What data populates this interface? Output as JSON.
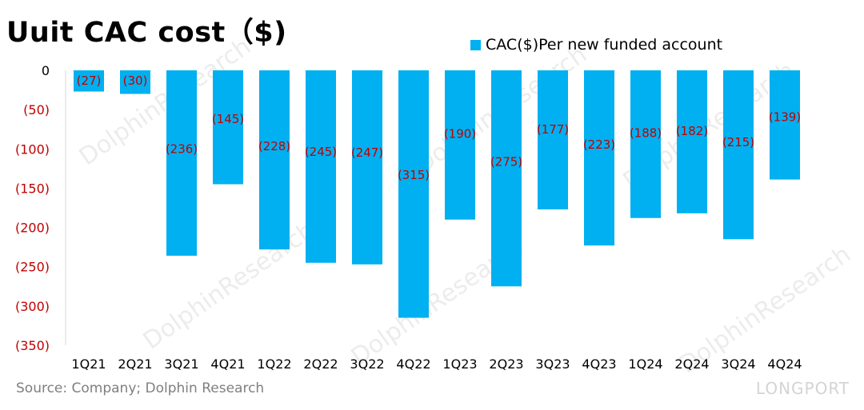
{
  "chart_data": {
    "type": "bar",
    "title": "Uuit CAC cost（$)",
    "legend": "CAC($)Per new funded account",
    "legend_position": "top-right",
    "categories": [
      "1Q21",
      "2Q21",
      "3Q21",
      "4Q21",
      "1Q22",
      "2Q22",
      "3Q22",
      "4Q22",
      "1Q23",
      "2Q23",
      "3Q23",
      "4Q23",
      "1Q24",
      "2Q24",
      "3Q24",
      "4Q24"
    ],
    "series": [
      {
        "name": "CAC($)Per new funded account",
        "values": [
          -27,
          -30,
          -236,
          -145,
          -228,
          -245,
          -247,
          -315,
          -190,
          -275,
          -177,
          -223,
          -188,
          -182,
          -215,
          -139
        ],
        "labels": [
          "(27)",
          "(30)",
          "(236)",
          "(145)",
          "(228)",
          "(245)",
          "(247)",
          "(315)",
          "(190)",
          "(275)",
          "(177)",
          "(223)",
          "(188)",
          "(182)",
          "(215)",
          "(139)"
        ]
      }
    ],
    "y_ticks": [
      "0",
      "(50)",
      "(100)",
      "(150)",
      "(200)",
      "(250)",
      "(300)",
      "(350)"
    ],
    "y_tick_values": [
      0,
      -50,
      -100,
      -150,
      -200,
      -250,
      -300,
      -350
    ],
    "ylim": [
      -350,
      0
    ],
    "grid": false,
    "colors": {
      "bar": "#00b0f0",
      "data_label": "#c00000",
      "negative_tick": "#c00000",
      "zero_tick": "#000000"
    }
  },
  "source": "Source: Company; Dolphin Research",
  "brand": "LONGPORT",
  "watermark": "DolphinResearch"
}
